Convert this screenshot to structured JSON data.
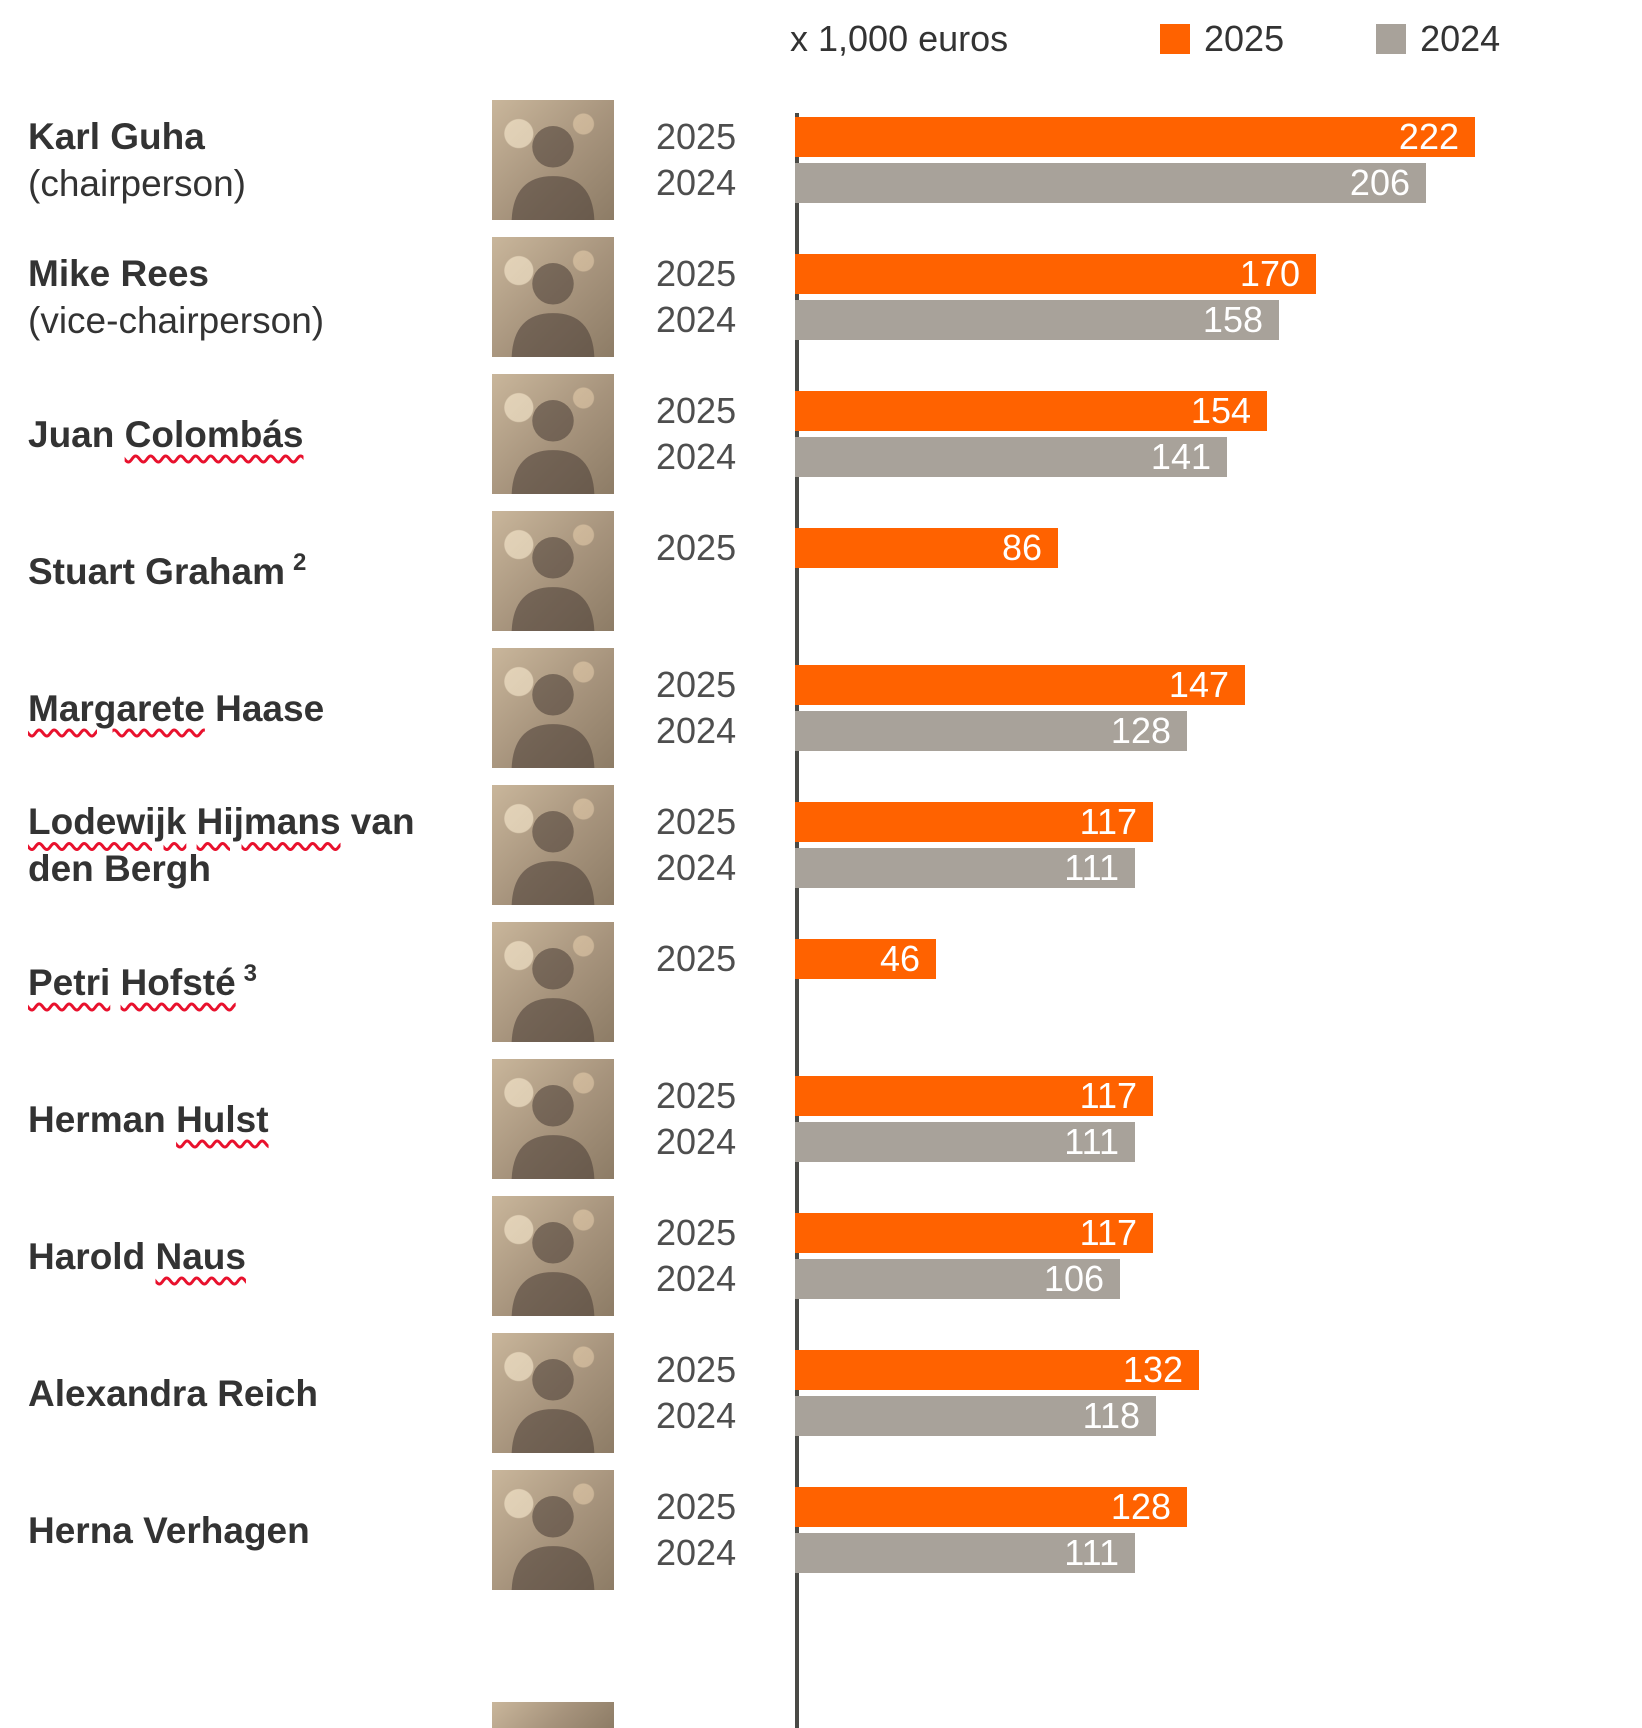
{
  "header": {
    "unit_label": "x 1,000 euros",
    "legend": [
      {
        "label": "2025",
        "color": "#FF6200"
      },
      {
        "label": "2024",
        "color": "#A8A29A"
      }
    ]
  },
  "chart_data": {
    "type": "bar",
    "orientation": "horizontal",
    "title": "",
    "unit": "x 1,000 euros",
    "legend_position": "top-right",
    "grid": false,
    "max_value": 222,
    "colors": {
      "2025": "#FF6200",
      "2024": "#A8A29A"
    },
    "value_label_color": "#FFFFFF",
    "categories": [
      "Karl Guha (chairperson)",
      "Mike Rees (vice-chairperson)",
      "Juan Colombás",
      "Stuart Graham 2",
      "Margarete Haase",
      "Lodewijk Hijmans van den Bergh",
      "Petri Hofsté 3",
      "Herman Hulst",
      "Harold Naus",
      "Alexandra Reich",
      "Herna Verhagen"
    ],
    "series": [
      {
        "name": "2025",
        "values": [
          222,
          170,
          154,
          86,
          147,
          117,
          46,
          117,
          117,
          132,
          128
        ]
      },
      {
        "name": "2024",
        "values": [
          206,
          158,
          141,
          null,
          128,
          111,
          null,
          111,
          106,
          118,
          111
        ]
      }
    ],
    "people": [
      {
        "name": "Karl Guha",
        "role": "(chairperson)",
        "name_lines": [
          {
            "bold": true,
            "parts": [
              {
                "text": "Karl Guha",
                "squiggle": false
              }
            ]
          },
          {
            "bold": false,
            "parts": [
              {
                "text": "(chairperson)",
                "squiggle": false
              }
            ]
          }
        ],
        "values": [
          {
            "year": "2025",
            "value": 222
          },
          {
            "year": "2024",
            "value": 206
          }
        ]
      },
      {
        "name": "Mike Rees",
        "role": "(vice-chairperson)",
        "name_lines": [
          {
            "bold": true,
            "parts": [
              {
                "text": "Mike Rees",
                "squiggle": false
              }
            ]
          },
          {
            "bold": false,
            "parts": [
              {
                "text": "(vice-chairperson)",
                "squiggle": false
              }
            ]
          }
        ],
        "values": [
          {
            "year": "2025",
            "value": 170
          },
          {
            "year": "2024",
            "value": 158
          }
        ]
      },
      {
        "name": "Juan Colombás",
        "name_lines": [
          {
            "bold": true,
            "parts": [
              {
                "text": "Juan ",
                "squiggle": false
              },
              {
                "text": "Colombás",
                "squiggle": true
              }
            ]
          }
        ],
        "values": [
          {
            "year": "2025",
            "value": 154
          },
          {
            "year": "2024",
            "value": 141
          }
        ]
      },
      {
        "name": "Stuart Graham",
        "footnote": "2",
        "name_lines": [
          {
            "bold": true,
            "superscript": "2",
            "parts": [
              {
                "text": "Stuart Graham",
                "squiggle": false
              }
            ]
          }
        ],
        "values": [
          {
            "year": "2025",
            "value": 86
          }
        ]
      },
      {
        "name": "Margarete Haase",
        "name_lines": [
          {
            "bold": true,
            "parts": [
              {
                "text": "Margarete",
                "squiggle": true
              },
              {
                "text": " Haase",
                "squiggle": false
              }
            ]
          }
        ],
        "values": [
          {
            "year": "2025",
            "value": 147
          },
          {
            "year": "2024",
            "value": 128
          }
        ]
      },
      {
        "name": "Lodewijk Hijmans van den Bergh",
        "name_lines": [
          {
            "bold": true,
            "parts": [
              {
                "text": "Lodewijk",
                "squiggle": true
              },
              {
                "text": " ",
                "squiggle": false
              },
              {
                "text": "Hijmans",
                "squiggle": true
              },
              {
                "text": " van",
                "squiggle": false
              }
            ]
          },
          {
            "bold": true,
            "parts": [
              {
                "text": "den Bergh",
                "squiggle": false
              }
            ]
          }
        ],
        "values": [
          {
            "year": "2025",
            "value": 117
          },
          {
            "year": "2024",
            "value": 111
          }
        ]
      },
      {
        "name": "Petri Hofsté",
        "footnote": "3",
        "name_lines": [
          {
            "bold": true,
            "superscript": "3",
            "parts": [
              {
                "text": "Petri",
                "squiggle": true
              },
              {
                "text": " ",
                "squiggle": false
              },
              {
                "text": "Hofsté",
                "squiggle": true
              }
            ]
          }
        ],
        "values": [
          {
            "year": "2025",
            "value": 46
          }
        ]
      },
      {
        "name": "Herman Hulst",
        "name_lines": [
          {
            "bold": true,
            "parts": [
              {
                "text": "Herman ",
                "squiggle": false
              },
              {
                "text": "Hulst",
                "squiggle": true
              }
            ]
          }
        ],
        "values": [
          {
            "year": "2025",
            "value": 117
          },
          {
            "year": "2024",
            "value": 111
          }
        ]
      },
      {
        "name": "Harold Naus",
        "name_lines": [
          {
            "bold": true,
            "parts": [
              {
                "text": "Harold ",
                "squiggle": false
              },
              {
                "text": "Naus",
                "squiggle": true
              }
            ]
          }
        ],
        "values": [
          {
            "year": "2025",
            "value": 117
          },
          {
            "year": "2024",
            "value": 106
          }
        ]
      },
      {
        "name": "Alexandra Reich",
        "name_lines": [
          {
            "bold": true,
            "parts": [
              {
                "text": "Alexandra Reich",
                "squiggle": false
              }
            ]
          }
        ],
        "values": [
          {
            "year": "2025",
            "value": 132
          },
          {
            "year": "2024",
            "value": 118
          }
        ]
      },
      {
        "name": "Herna Verhagen",
        "name_lines": [
          {
            "bold": true,
            "parts": [
              {
                "text": "Herna Verhagen",
                "squiggle": false
              }
            ]
          }
        ],
        "values": [
          {
            "year": "2025",
            "value": 128
          },
          {
            "year": "2024",
            "value": 111
          }
        ]
      }
    ]
  }
}
